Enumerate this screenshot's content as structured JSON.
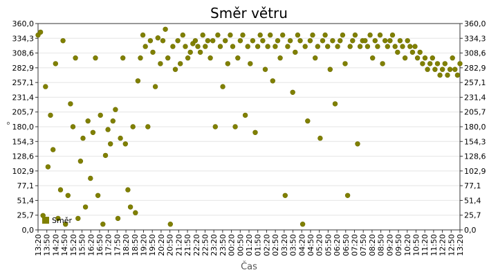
{
  "chart_data": {
    "type": "scatter",
    "title": "Směr větru",
    "xlabel": "Čas",
    "ylabel": "°",
    "ylim": [
      0,
      360
    ],
    "y_ticks": [
      "0,0",
      "25,7",
      "51,4",
      "77,1",
      "102,9",
      "128,6",
      "154,3",
      "180,0",
      "205,7",
      "231,4",
      "257,1",
      "282,9",
      "308,6",
      "334,3",
      "360,0"
    ],
    "x_ticks": [
      "13:20",
      "13:50",
      "14:20",
      "14:50",
      "15:20",
      "15:50",
      "16:20",
      "16:50",
      "17:20",
      "17:50",
      "18:20",
      "18:50",
      "19:20",
      "19:50",
      "20:20",
      "20:50",
      "21:20",
      "21:50",
      "22:20",
      "22:50",
      "23:20",
      "23:50",
      "00:20",
      "00:50",
      "01:20",
      "01:50",
      "02:20",
      "02:50",
      "03:20",
      "03:50",
      "04:20",
      "04:50",
      "05:20",
      "05:50",
      "06:20",
      "06:50",
      "07:20",
      "07:50",
      "08:20",
      "08:50",
      "09:20",
      "09:50",
      "10:20",
      "10:50",
      "11:20",
      "11:50",
      "12:20",
      "12:50",
      "13:20"
    ],
    "grid": true,
    "marker_color": "#808000",
    "legend": {
      "label": "Směr",
      "placement": "bottom-left"
    },
    "series": [
      {
        "name": "Směr",
        "points": [
          [
            0,
            340
          ],
          [
            1,
            345
          ],
          [
            2,
            25
          ],
          [
            3,
            250
          ],
          [
            4,
            110
          ],
          [
            5,
            200
          ],
          [
            6,
            140
          ],
          [
            7,
            290
          ],
          [
            8,
            20
          ],
          [
            9,
            70
          ],
          [
            10,
            330
          ],
          [
            11,
            10
          ],
          [
            12,
            60
          ],
          [
            13,
            220
          ],
          [
            14,
            180
          ],
          [
            15,
            300
          ],
          [
            16,
            20
          ],
          [
            17,
            120
          ],
          [
            18,
            160
          ],
          [
            19,
            40
          ],
          [
            20,
            190
          ],
          [
            21,
            90
          ],
          [
            22,
            170
          ],
          [
            23,
            300
          ],
          [
            24,
            60
          ],
          [
            25,
            200
          ],
          [
            26,
            10
          ],
          [
            27,
            130
          ],
          [
            28,
            175
          ],
          [
            29,
            150
          ],
          [
            30,
            190
          ],
          [
            31,
            210
          ],
          [
            32,
            20
          ],
          [
            33,
            160
          ],
          [
            34,
            300
          ],
          [
            35,
            150
          ],
          [
            36,
            70
          ],
          [
            37,
            40
          ],
          [
            38,
            180
          ],
          [
            39,
            30
          ],
          [
            40,
            260
          ],
          [
            41,
            300
          ],
          [
            42,
            340
          ],
          [
            43,
            320
          ],
          [
            44,
            180
          ],
          [
            45,
            330
          ],
          [
            46,
            310
          ],
          [
            47,
            250
          ],
          [
            48,
            335
          ],
          [
            49,
            290
          ],
          [
            50,
            330
          ],
          [
            51,
            350
          ],
          [
            52,
            300
          ],
          [
            53,
            10
          ],
          [
            54,
            320
          ],
          [
            55,
            280
          ],
          [
            56,
            330
          ],
          [
            57,
            290
          ],
          [
            58,
            340
          ],
          [
            59,
            320
          ],
          [
            60,
            300
          ],
          [
            61,
            310
          ],
          [
            62,
            325
          ],
          [
            63,
            330
          ],
          [
            64,
            320
          ],
          [
            65,
            310
          ],
          [
            66,
            340
          ],
          [
            67,
            320
          ],
          [
            68,
            330
          ],
          [
            69,
            300
          ],
          [
            70,
            330
          ],
          [
            71,
            180
          ],
          [
            72,
            340
          ],
          [
            73,
            320
          ],
          [
            74,
            250
          ],
          [
            75,
            330
          ],
          [
            76,
            290
          ],
          [
            77,
            340
          ],
          [
            78,
            320
          ],
          [
            79,
            180
          ],
          [
            80,
            300
          ],
          [
            81,
            330
          ],
          [
            82,
            340
          ],
          [
            83,
            200
          ],
          [
            84,
            320
          ],
          [
            85,
            290
          ],
          [
            86,
            330
          ],
          [
            87,
            170
          ],
          [
            88,
            320
          ],
          [
            89,
            340
          ],
          [
            90,
            330
          ],
          [
            91,
            280
          ],
          [
            92,
            320
          ],
          [
            93,
            340
          ],
          [
            94,
            260
          ],
          [
            95,
            320
          ],
          [
            96,
            330
          ],
          [
            97,
            300
          ],
          [
            98,
            340
          ],
          [
            99,
            60
          ],
          [
            100,
            320
          ],
          [
            101,
            330
          ],
          [
            102,
            240
          ],
          [
            103,
            310
          ],
          [
            104,
            340
          ],
          [
            105,
            330
          ],
          [
            106,
            10
          ],
          [
            107,
            320
          ],
          [
            108,
            190
          ],
          [
            109,
            330
          ],
          [
            110,
            340
          ],
          [
            111,
            300
          ],
          [
            112,
            320
          ],
          [
            113,
            160
          ],
          [
            114,
            330
          ],
          [
            115,
            340
          ],
          [
            116,
            320
          ],
          [
            117,
            280
          ],
          [
            118,
            330
          ],
          [
            119,
            220
          ],
          [
            120,
            320
          ],
          [
            121,
            330
          ],
          [
            122,
            340
          ],
          [
            123,
            290
          ],
          [
            124,
            60
          ],
          [
            125,
            320
          ],
          [
            126,
            330
          ],
          [
            127,
            340
          ],
          [
            128,
            150
          ],
          [
            129,
            320
          ],
          [
            130,
            330
          ],
          [
            131,
            330
          ],
          [
            132,
            320
          ],
          [
            133,
            340
          ],
          [
            134,
            300
          ],
          [
            135,
            330
          ],
          [
            136,
            320
          ],
          [
            137,
            340
          ],
          [
            138,
            290
          ],
          [
            139,
            330
          ],
          [
            140,
            320
          ],
          [
            141,
            330
          ],
          [
            142,
            340
          ],
          [
            143,
            320
          ],
          [
            144,
            310
          ],
          [
            145,
            330
          ],
          [
            146,
            320
          ],
          [
            147,
            300
          ],
          [
            148,
            330
          ],
          [
            149,
            320
          ],
          [
            150,
            310
          ],
          [
            151,
            320
          ],
          [
            152,
            300
          ],
          [
            153,
            310
          ],
          [
            154,
            290
          ],
          [
            155,
            300
          ],
          [
            156,
            280
          ],
          [
            157,
            290
          ],
          [
            158,
            300
          ],
          [
            159,
            280
          ],
          [
            160,
            290
          ],
          [
            161,
            270
          ],
          [
            162,
            280
          ],
          [
            163,
            290
          ],
          [
            164,
            270
          ],
          [
            165,
            280
          ],
          [
            166,
            300
          ],
          [
            167,
            280
          ],
          [
            168,
            270
          ],
          [
            169,
            290
          ]
        ]
      }
    ]
  }
}
